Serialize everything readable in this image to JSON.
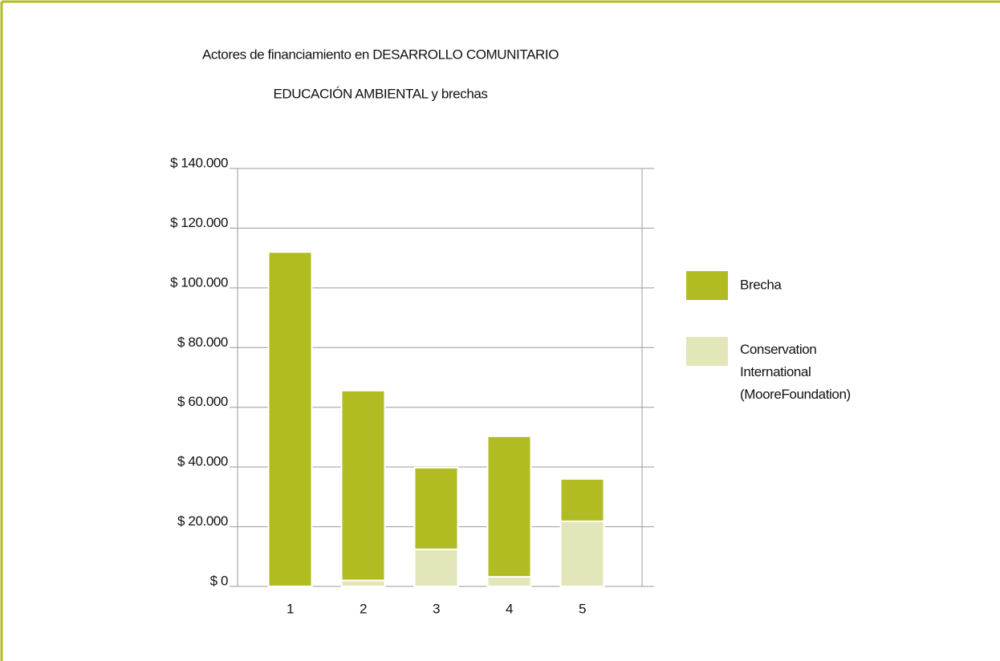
{
  "chart_data": {
    "type": "stacked_bar",
    "title": [
      "Actores de financiamiento en DESARROLLO COMUNITARIO",
      "EDUCACIÓN AMBIENTAL y brechas"
    ],
    "categories": [
      "1",
      "2",
      "3",
      "4",
      "5"
    ],
    "series": [
      {
        "name": "Brecha",
        "color": "#b1bc22",
        "values": [
          112000,
          63600,
          27400,
          47100,
          14200
        ]
      },
      {
        "name": "Conservation International (MooreFoundation)",
        "color": "#e3e6b8",
        "values": [
          0,
          2000,
          12400,
          3200,
          21800
        ]
      }
    ],
    "ylim": [
      0,
      140000
    ],
    "yticks": [
      {
        "value": 0,
        "label": "$ 0"
      },
      {
        "value": 20000,
        "label": "$ 20.000"
      },
      {
        "value": 40000,
        "label": "$ 40.000"
      },
      {
        "value": 60000,
        "label": "$ 60.000"
      },
      {
        "value": 80000,
        "label": "$ 80.000"
      },
      {
        "value": 100000,
        "label": "$ 100.000"
      },
      {
        "value": 120000,
        "label": "$ 120.000"
      },
      {
        "value": 140000,
        "label": "$ 140.000"
      }
    ],
    "grid": true,
    "legend": "right"
  }
}
